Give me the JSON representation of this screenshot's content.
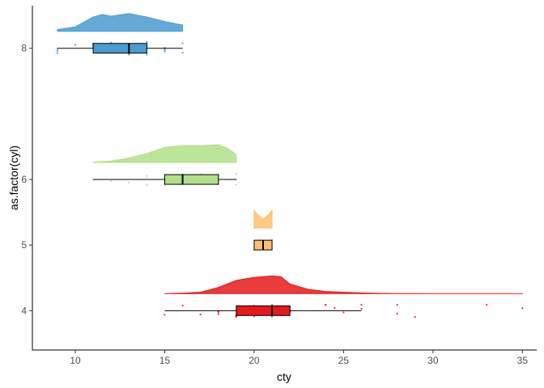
{
  "chart_data": {
    "type": "raincloud",
    "xlabel": "cty",
    "ylabel": "as.factor(cyl)",
    "xlim": [
      7.6,
      35.8
    ],
    "ylim": [
      3.4,
      8.65
    ],
    "x_ticks": [
      10,
      15,
      20,
      25,
      30,
      35
    ],
    "y_ticks": [
      4,
      5,
      6,
      8
    ],
    "x_tick_labels": [
      "10",
      "15",
      "20",
      "25",
      "30",
      "35"
    ],
    "y_tick_labels": [
      "4",
      "5",
      "6",
      "8"
    ],
    "grid": false,
    "legend": "none",
    "groups": [
      {
        "cyl": "4",
        "color": "#e41a1c",
        "box": {
          "whisker_low": 15,
          "q1": 19,
          "median": 21,
          "q3": 22,
          "whisker_high": 26
        },
        "density": [
          [
            15,
            0.005
          ],
          [
            16,
            0.03
          ],
          [
            17,
            0.08
          ],
          [
            18,
            0.35
          ],
          [
            19,
            0.75
          ],
          [
            20,
            0.92
          ],
          [
            21,
            1.0
          ],
          [
            21.5,
            0.95
          ],
          [
            22,
            0.55
          ],
          [
            23,
            0.25
          ],
          [
            24,
            0.12
          ],
          [
            25,
            0.08
          ],
          [
            26,
            0.04
          ],
          [
            27,
            0.02
          ],
          [
            28,
            0.01
          ],
          [
            30,
            0.003
          ],
          [
            35,
            0.002
          ]
        ],
        "points": [
          15,
          16,
          17,
          18,
          18,
          18,
          19,
          19,
          19,
          19,
          19.5,
          20,
          20,
          20,
          20,
          20.5,
          20.5,
          21,
          21,
          21,
          21,
          21,
          21.5,
          21.5,
          22,
          22,
          22,
          22,
          24,
          24,
          24.5,
          25,
          26,
          26,
          28,
          28,
          29,
          33,
          35
        ]
      },
      {
        "cyl": "5",
        "color": "#fdbf6f",
        "box": {
          "whisker_low": 20,
          "q1": 20,
          "median": 20.5,
          "q3": 21,
          "whisker_high": 21
        },
        "density": [
          [
            20,
            1.0
          ],
          [
            20.2,
            0.75
          ],
          [
            20.5,
            0.5
          ],
          [
            20.8,
            0.75
          ],
          [
            21,
            1.0
          ]
        ],
        "points": [
          20,
          20.3,
          21,
          21
        ]
      },
      {
        "cyl": "6",
        "color": "#b2df8a",
        "box": {
          "whisker_low": 11,
          "q1": 15,
          "median": 16,
          "q3": 18,
          "whisker_high": 19
        },
        "density": [
          [
            11,
            0.02
          ],
          [
            12,
            0.08
          ],
          [
            13,
            0.25
          ],
          [
            14,
            0.5
          ],
          [
            15,
            0.85
          ],
          [
            16,
            0.95
          ],
          [
            17,
            0.95
          ],
          [
            18,
            1.0
          ],
          [
            18.5,
            0.8
          ],
          [
            19,
            0.45
          ]
        ],
        "points": [
          11,
          12,
          13,
          14,
          14,
          15,
          15,
          15,
          15,
          16,
          16,
          16,
          16,
          16,
          17,
          17,
          17,
          17,
          17,
          18,
          18,
          18,
          18,
          18,
          19,
          19,
          19
        ]
      },
      {
        "cyl": "8",
        "color": "#4a9bd0",
        "box": {
          "whisker_low": 9,
          "q1": 11,
          "median": 13,
          "q3": 14,
          "whisker_high": 16
        },
        "density": [
          [
            9,
            0.1
          ],
          [
            10,
            0.25
          ],
          [
            11,
            0.8
          ],
          [
            11.5,
            0.95
          ],
          [
            12,
            0.85
          ],
          [
            13,
            1.0
          ],
          [
            14,
            0.8
          ],
          [
            15,
            0.55
          ],
          [
            16,
            0.35
          ]
        ],
        "points": [
          9,
          9,
          9,
          10,
          11,
          11,
          11,
          11,
          11,
          12,
          12,
          12,
          12,
          12,
          13,
          13,
          13,
          13,
          13,
          13,
          14,
          14,
          14,
          14,
          14,
          15,
          15,
          15,
          15,
          16,
          16
        ]
      }
    ]
  }
}
